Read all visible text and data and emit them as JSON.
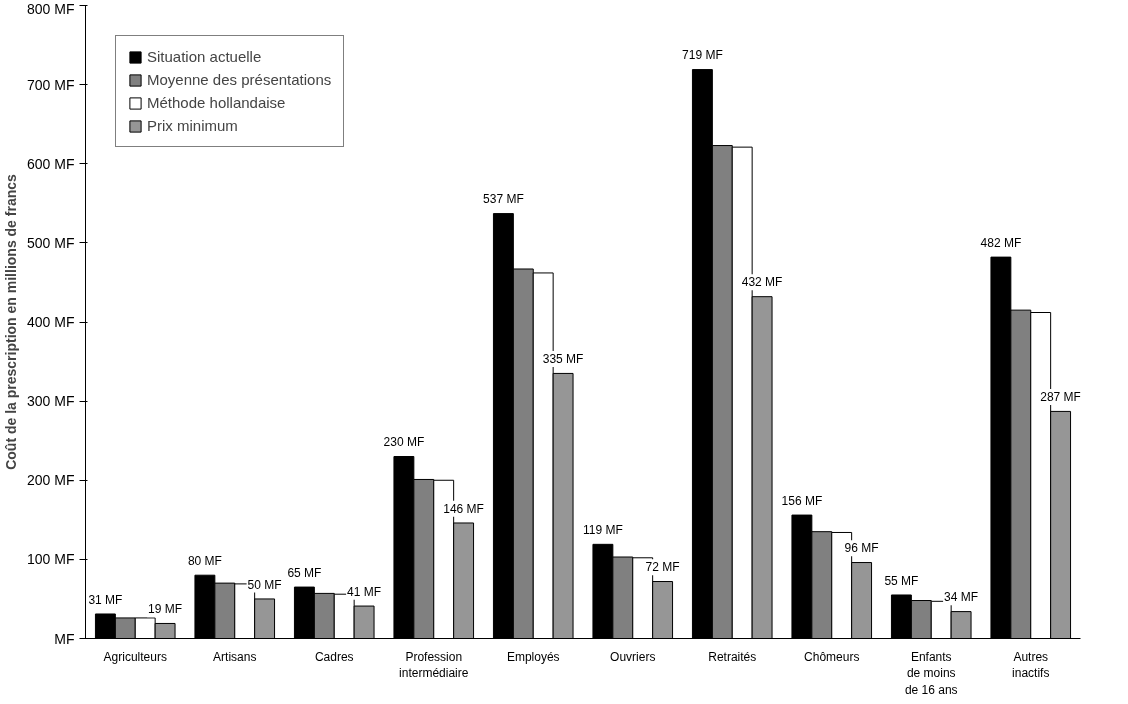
{
  "chart_data": {
    "type": "bar",
    "ylabel": "Coût de la prescription en millions de francs",
    "categories": [
      "Agriculteurs",
      "Artisans",
      "Cadres",
      "Profession\nintermédiaire",
      "Employés",
      "Ouvriers",
      "Retraités",
      "Chômeurs",
      "Enfants\nde moins\nde 16 ans",
      "Autres\ninactifs"
    ],
    "series": [
      {
        "name": "Situation actuelle",
        "color": "#000000",
        "values": [
          31,
          80,
          65,
          230,
          537,
          119,
          719,
          156,
          55,
          482
        ],
        "value_labels": [
          "31 MF",
          "80 MF",
          "65 MF",
          "230 MF",
          "537 MF",
          "119 MF",
          "719 MF",
          "156 MF",
          "55 MF",
          "482 MF"
        ]
      },
      {
        "name": "Moyenne des présentations",
        "color": "#808080",
        "values": [
          26,
          70,
          57,
          201,
          467,
          103,
          623,
          135,
          48,
          415
        ]
      },
      {
        "name": "Méthode hollandaise",
        "color": "#ffffff",
        "values": [
          26,
          69,
          56,
          200,
          462,
          102,
          621,
          134,
          47,
          412
        ]
      },
      {
        "name": "Prix minimum",
        "color": "#969696",
        "values": [
          19,
          50,
          41,
          146,
          335,
          72,
          432,
          96,
          34,
          287
        ],
        "value_labels": [
          "19 MF",
          "50 MF",
          "41 MF",
          "146 MF",
          "335 MF",
          "72 MF",
          "432 MF",
          "96 MF",
          "34 MF",
          "287 MF"
        ]
      }
    ],
    "ylim": [
      0,
      800
    ],
    "yticks": [
      {
        "value": 0,
        "label": "MF"
      },
      {
        "value": 100,
        "label": "100 MF"
      },
      {
        "value": 200,
        "label": "200 MF"
      },
      {
        "value": 300,
        "label": "300 MF"
      },
      {
        "value": 400,
        "label": "400 MF"
      },
      {
        "value": 500,
        "label": "500 MF"
      },
      {
        "value": 600,
        "label": "600 MF"
      },
      {
        "value": 700,
        "label": "700 MF"
      },
      {
        "value": 800,
        "label": "800 MF"
      }
    ],
    "grid": false,
    "legend": "top left"
  }
}
